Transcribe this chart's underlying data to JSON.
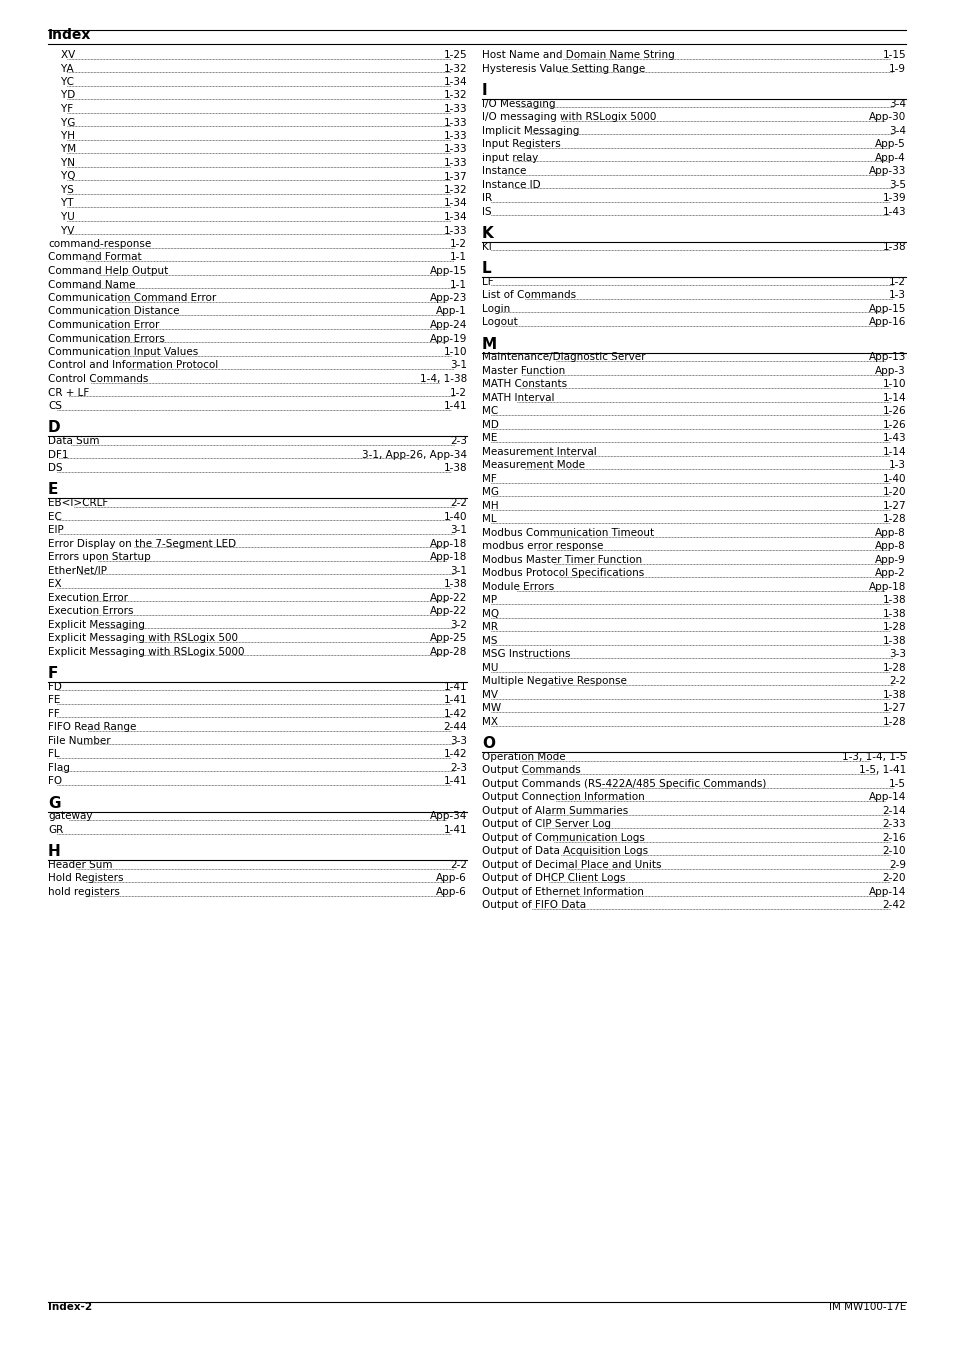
{
  "title": "Index",
  "footer_left": "Index-2",
  "footer_right": "IM MW100-17E",
  "bg_color": "#ffffff",
  "left_col": {
    "sections": [
      {
        "type": "continuation",
        "items": [
          [
            "    XV",
            "1-25"
          ],
          [
            "    YA",
            "1-32"
          ],
          [
            "    YC",
            "1-34"
          ],
          [
            "    YD",
            "1-32"
          ],
          [
            "    YF",
            "1-33"
          ],
          [
            "    YG",
            "1-33"
          ],
          [
            "    YH",
            "1-33"
          ],
          [
            "    YM",
            "1-33"
          ],
          [
            "    YN",
            "1-33"
          ],
          [
            "    YQ",
            "1-37"
          ],
          [
            "    YS",
            "1-32"
          ],
          [
            "    YT",
            "1-34"
          ],
          [
            "    YU",
            "1-34"
          ],
          [
            "    YV",
            "1-33"
          ],
          [
            "command-response",
            "1-2"
          ],
          [
            "Command Format",
            "1-1"
          ],
          [
            "Command Help Output",
            "App-15"
          ],
          [
            "Command Name",
            "1-1"
          ],
          [
            "Communication Command Error",
            "App-23"
          ],
          [
            "Communication Distance",
            "App-1"
          ],
          [
            "Communication Error",
            "App-24"
          ],
          [
            "Communication Errors",
            "App-19"
          ],
          [
            "Communication Input Values",
            "1-10"
          ],
          [
            "Control and Information Protocol",
            "3-1"
          ],
          [
            "Control Commands",
            "1-4, 1-38"
          ],
          [
            "CR + LF",
            "1-2"
          ],
          [
            "CS",
            "1-41"
          ]
        ]
      },
      {
        "type": "section",
        "letter": "D",
        "items": [
          [
            "Data Sum",
            "2-3"
          ],
          [
            "DF1",
            "3-1, App-26, App-34"
          ],
          [
            "DS",
            "1-38"
          ]
        ]
      },
      {
        "type": "section",
        "letter": "E",
        "items": [
          [
            "EB<I>CRLF",
            "2-2"
          ],
          [
            "EC",
            "1-40"
          ],
          [
            "EIP",
            "3-1"
          ],
          [
            "Error Display on the 7-Segment LED",
            "App-18"
          ],
          [
            "Errors upon Startup",
            "App-18"
          ],
          [
            "EtherNet/IP",
            "3-1"
          ],
          [
            "EX",
            "1-38"
          ],
          [
            "Execution Error",
            "App-22"
          ],
          [
            "Execution Errors",
            "App-22"
          ],
          [
            "Explicit Messaging",
            "3-2"
          ],
          [
            "Explicit Messaging with RSLogix 500",
            "App-25"
          ],
          [
            "Explicit Messaging with RSLogix 5000",
            "App-28"
          ]
        ]
      },
      {
        "type": "section",
        "letter": "F",
        "items": [
          [
            "FD",
            "1-41"
          ],
          [
            "FE",
            "1-41"
          ],
          [
            "FF",
            "1-42"
          ],
          [
            "FIFO Read Range",
            "2-44"
          ],
          [
            "File Number",
            "3-3"
          ],
          [
            "FL",
            "1-42"
          ],
          [
            "Flag",
            "2-3"
          ],
          [
            "FO",
            "1-41"
          ]
        ]
      },
      {
        "type": "section",
        "letter": "G",
        "items": [
          [
            "gateway",
            "App-34"
          ],
          [
            "GR",
            "1-41"
          ]
        ]
      },
      {
        "type": "section",
        "letter": "H",
        "items": [
          [
            "Header Sum",
            "2-2"
          ],
          [
            "Hold Registers",
            "App-6"
          ],
          [
            "hold registers",
            "App-6"
          ]
        ]
      }
    ]
  },
  "right_col": {
    "sections": [
      {
        "type": "continuation",
        "items": [
          [
            "Host Name and Domain Name String",
            "1-15"
          ],
          [
            "Hysteresis Value Setting Range",
            "1-9"
          ]
        ]
      },
      {
        "type": "section",
        "letter": "I",
        "items": [
          [
            "I/O Messaging",
            "3-4"
          ],
          [
            "I/O messaging with RSLogix 5000",
            "App-30"
          ],
          [
            "Implicit Messaging",
            "3-4"
          ],
          [
            "Input Registers",
            "App-5"
          ],
          [
            "input relay",
            "App-4"
          ],
          [
            "Instance",
            "App-33"
          ],
          [
            "Instance ID",
            "3-5"
          ],
          [
            "IR",
            "1-39"
          ],
          [
            "IS",
            "1-43"
          ]
        ]
      },
      {
        "type": "section",
        "letter": "K",
        "items": [
          [
            "KI",
            "1-38"
          ]
        ]
      },
      {
        "type": "section",
        "letter": "L",
        "items": [
          [
            "LF",
            "1-2"
          ],
          [
            "List of Commands",
            "1-3"
          ],
          [
            "Login",
            "App-15"
          ],
          [
            "Logout",
            "App-16"
          ]
        ]
      },
      {
        "type": "section",
        "letter": "M",
        "items": [
          [
            "Maintenance/Diagnostic Server",
            "App-13"
          ],
          [
            "Master Function",
            "App-3"
          ],
          [
            "MATH Constants",
            "1-10"
          ],
          [
            "MATH Interval",
            "1-14"
          ],
          [
            "MC",
            "1-26"
          ],
          [
            "MD",
            "1-26"
          ],
          [
            "ME",
            "1-43"
          ],
          [
            "Measurement Interval",
            "1-14"
          ],
          [
            "Measurement Mode",
            "1-3"
          ],
          [
            "MF",
            "1-40"
          ],
          [
            "MG",
            "1-20"
          ],
          [
            "MH",
            "1-27"
          ],
          [
            "ML",
            "1-28"
          ],
          [
            "Modbus Communication Timeout",
            "App-8"
          ],
          [
            "modbus error response",
            "App-8"
          ],
          [
            "Modbus Master Timer Function",
            "App-9"
          ],
          [
            "Modbus Protocol Specifications",
            "App-2"
          ],
          [
            "Module Errors",
            "App-18"
          ],
          [
            "MP",
            "1-38"
          ],
          [
            "MQ",
            "1-38"
          ],
          [
            "MR",
            "1-28"
          ],
          [
            "MS",
            "1-38"
          ],
          [
            "MSG Instructions",
            "3-3"
          ],
          [
            "MU",
            "1-28"
          ],
          [
            "Multiple Negative Response",
            "2-2"
          ],
          [
            "MV",
            "1-38"
          ],
          [
            "MW",
            "1-27"
          ],
          [
            "MX",
            "1-28"
          ]
        ]
      },
      {
        "type": "section",
        "letter": "O",
        "items": [
          [
            "Operation Mode",
            "1-3, 1-4, 1-5"
          ],
          [
            "Output Commands",
            "1-5, 1-41"
          ],
          [
            "Output Commands (RS-422A/485 Specific Commands)",
            "1-5"
          ],
          [
            "Output Connection Information",
            "App-14"
          ],
          [
            "Output of Alarm Summaries",
            "2-14"
          ],
          [
            "Output of CIP Server Log",
            "2-33"
          ],
          [
            "Output of Communication Logs",
            "2-16"
          ],
          [
            "Output of Data Acquisition Logs",
            "2-10"
          ],
          [
            "Output of Decimal Place and Units",
            "2-9"
          ],
          [
            "Output of DHCP Client Logs",
            "2-20"
          ],
          [
            "Output of Ethernet Information",
            "App-14"
          ],
          [
            "Output of FIFO Data",
            "2-42"
          ]
        ]
      }
    ]
  }
}
